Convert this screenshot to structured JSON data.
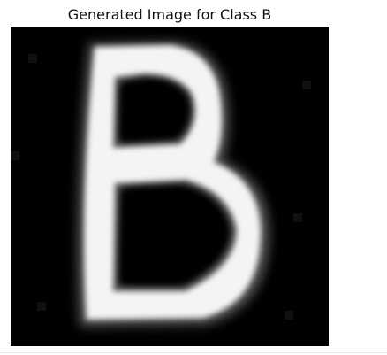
{
  "figure": {
    "title": "Generated Image for Class B"
  },
  "image": {
    "depicts": "letter-b",
    "background_color": "#000000",
    "foreground_color": "#ffffff"
  }
}
